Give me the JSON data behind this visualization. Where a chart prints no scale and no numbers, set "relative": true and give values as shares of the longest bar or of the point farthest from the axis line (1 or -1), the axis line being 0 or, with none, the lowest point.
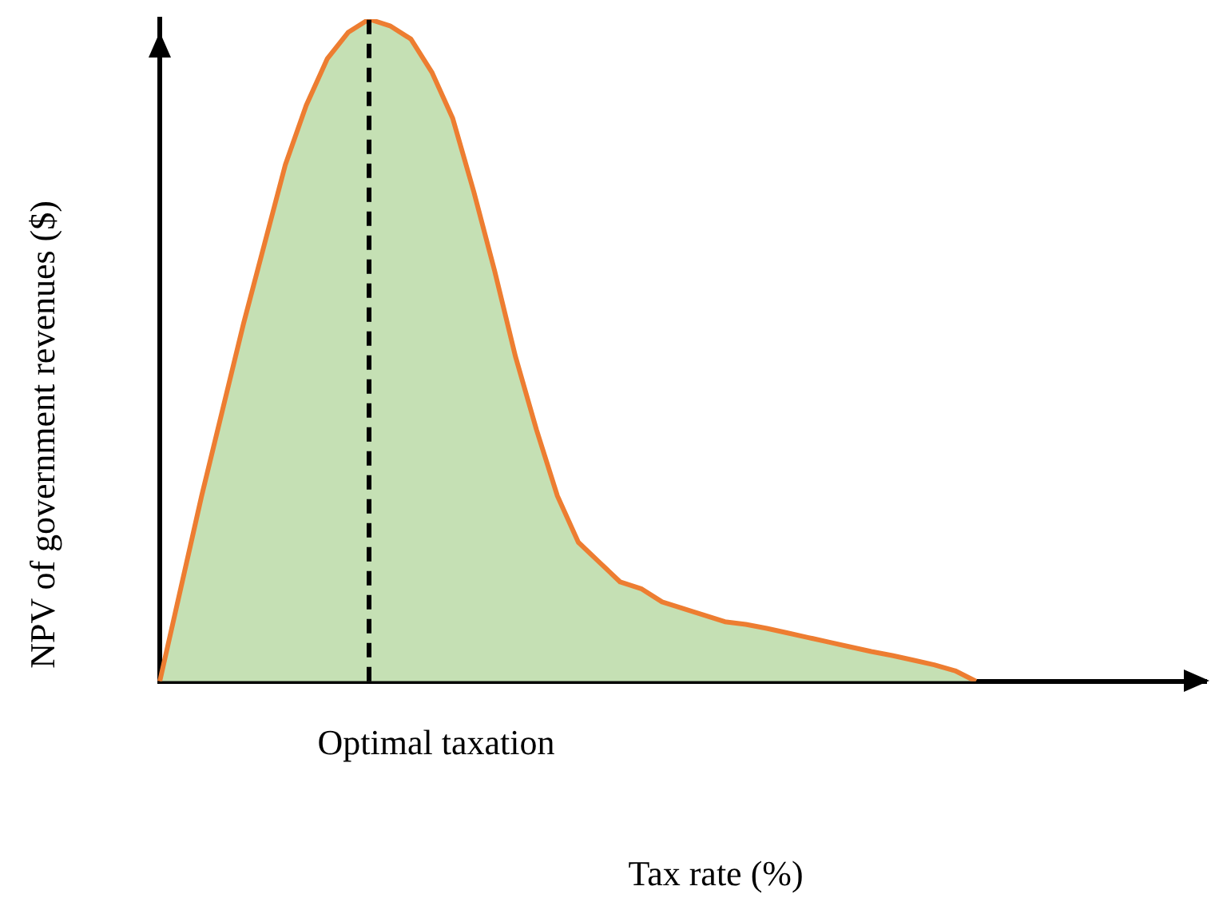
{
  "chart_data": {
    "type": "area",
    "xlabel": "Tax rate (%)",
    "ylabel": "NPV of government revenues ($)",
    "relative": true,
    "categories": [
      null,
      null,
      null,
      null,
      null,
      null,
      null,
      null,
      null,
      null,
      null,
      null,
      null,
      null,
      null,
      null,
      null,
      null,
      null,
      null,
      null,
      null,
      null,
      null,
      null,
      null,
      null,
      null,
      null,
      null,
      null,
      null,
      null,
      null,
      null,
      null,
      null,
      null,
      null,
      null,
      null,
      null,
      null,
      null,
      null,
      null,
      null,
      null,
      null,
      null,
      null
    ],
    "series": [
      {
        "color": "#c5e0b4",
        "values": [
          0,
          0.14,
          0.28,
          0.41,
          0.54,
          0.66,
          0.78,
          0.87,
          0.94,
          0.98,
          1,
          0.99,
          0.97,
          0.92,
          0.85,
          0.74,
          0.62,
          0.49,
          0.38,
          0.28,
          0.21,
          0.18,
          0.15,
          0.14,
          0.12,
          0.11,
          0.1,
          0.09,
          0.086,
          0.08,
          0.073,
          0.066,
          0.059,
          0.052,
          0.045,
          0.039,
          0.032,
          0.025,
          0.016,
          0,
          null,
          null,
          null,
          null,
          null,
          null,
          null,
          null,
          null,
          null,
          null
        ]
      }
    ],
    "annotations": [
      "Optimal taxation"
    ]
  }
}
